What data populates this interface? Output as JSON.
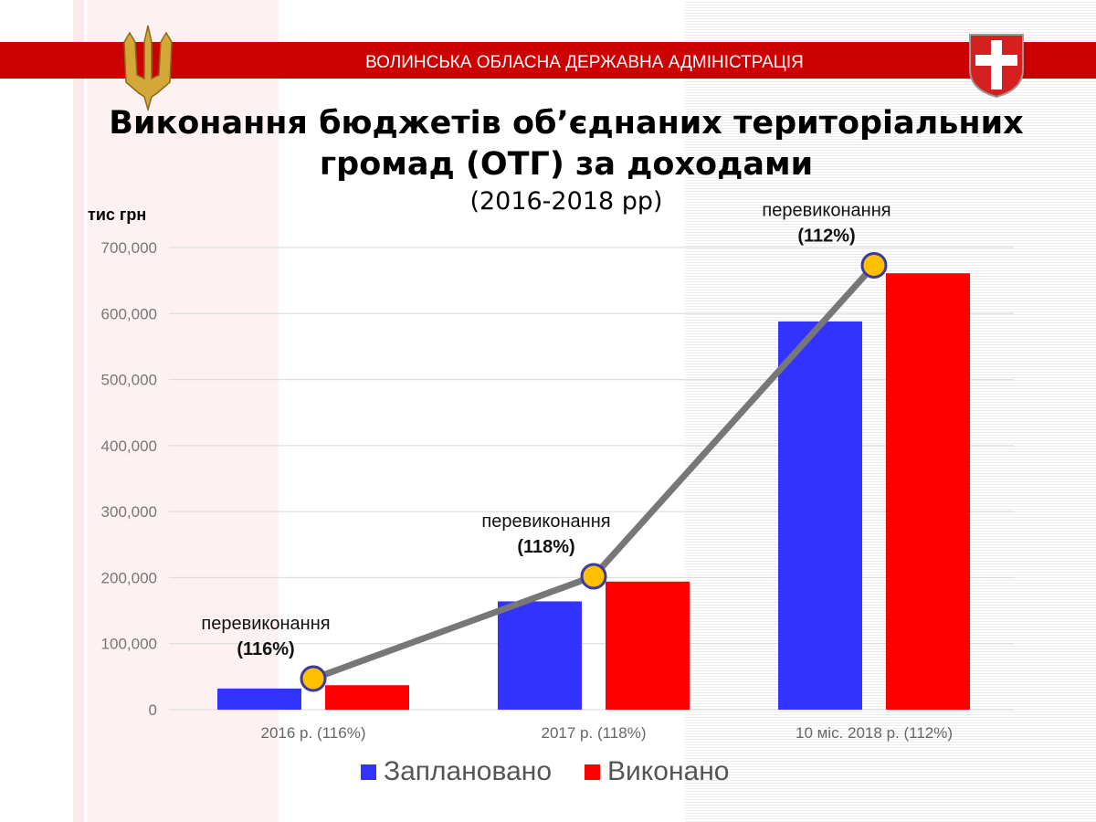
{
  "header": {
    "organization": "ВОЛИНСЬКА ОБЛАСНА ДЕРЖАВНА АДМІНІСТРАЦІЯ",
    "title_line1": "Виконання бюджетів об’єднаних територіальних",
    "title_line2": "громад (ОТГ) за доходами",
    "subtitle": "(2016-2018 рр)"
  },
  "chart_data": {
    "type": "bar",
    "ylabel": "тис грн",
    "ylim": [
      0,
      700000
    ],
    "yticks": [
      "0",
      "100,000",
      "200,000",
      "300,000",
      "400,000",
      "500,000",
      "600,000",
      "700,000"
    ],
    "ytick_values": [
      0,
      100000,
      200000,
      300000,
      400000,
      500000,
      600000,
      700000
    ],
    "grid": true,
    "legend_position": "bottom",
    "categories": [
      "2016 р. (116%)",
      "2017 р. (118%)",
      "10 міс. 2018 р. (112%)"
    ],
    "series": [
      {
        "name": "Заплановано",
        "color": "#3333ff",
        "values": [
          32000,
          164000,
          588000
        ]
      },
      {
        "name": "Виконано",
        "color": "#ff0000",
        "values": [
          37000,
          194000,
          661000
        ]
      }
    ],
    "trend_line": {
      "color": "#777777",
      "marker_color": "#ffc000",
      "values": [
        47000,
        202000,
        673000
      ]
    },
    "annotations": [
      {
        "label": "перевиконання",
        "value": "(116%)"
      },
      {
        "label": "перевиконання",
        "value": "(118%)"
      },
      {
        "label": "перевиконання",
        "value": "(112%)"
      }
    ]
  }
}
